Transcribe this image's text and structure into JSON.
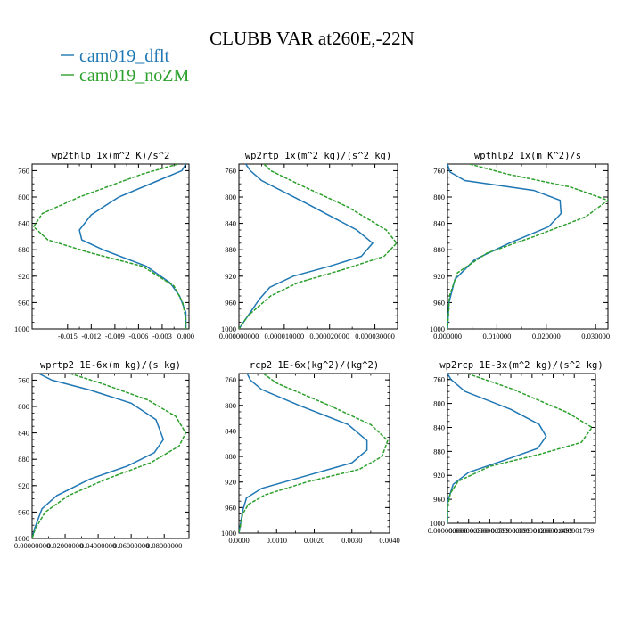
{
  "figure": {
    "title": "CLUBB VAR at260E,-22N",
    "legend": [
      {
        "name": "cam019_dflt",
        "color": "#1f77b4"
      },
      {
        "name": "cam019_noZM",
        "color": "#2ca02c"
      }
    ]
  },
  "chart_data": [
    {
      "type": "line",
      "title": "wp2thlp   1x(m^2 K)/s^2",
      "ylim": [
        1000,
        750
      ],
      "yticks": [
        "760",
        "800",
        "840",
        "880",
        "920",
        "960",
        "1000"
      ],
      "ytick_values": [
        760,
        800,
        840,
        880,
        920,
        960,
        1000
      ],
      "xlim": [
        -0.0195,
        0.0004
      ],
      "xticks": [
        "-0.015",
        "-0.012",
        "-0.009",
        "-0.006",
        "-0.003",
        "0.000"
      ],
      "xtick_values": [
        -0.015,
        -0.012,
        -0.009,
        -0.006,
        -0.003,
        0.0
      ],
      "series": [
        {
          "name": "cam019_dflt",
          "color": "#1f77b4",
          "dash": "",
          "points": [
            [
              0.0,
              750
            ],
            [
              -0.0005,
              760
            ],
            [
              -0.0035,
              775
            ],
            [
              -0.0085,
              800
            ],
            [
              -0.012,
              827
            ],
            [
              -0.0135,
              850
            ],
            [
              -0.0132,
              865
            ],
            [
              -0.0105,
              880
            ],
            [
              -0.005,
              905
            ],
            [
              -0.002,
              930
            ],
            [
              -0.0008,
              950
            ],
            [
              0.0,
              975
            ],
            [
              0.0,
              1000
            ]
          ]
        },
        {
          "name": "cam019_noZM",
          "color": "#2ca02c",
          "dash": "4,1.5",
          "points": [
            [
              -0.001,
              750
            ],
            [
              -0.0055,
              765
            ],
            [
              -0.0135,
              800
            ],
            [
              -0.0182,
              825
            ],
            [
              -0.0193,
              845
            ],
            [
              -0.0175,
              865
            ],
            [
              -0.012,
              885
            ],
            [
              -0.0055,
              905
            ],
            [
              -0.0015,
              935
            ],
            [
              -0.0004,
              960
            ],
            [
              0.0,
              985
            ],
            [
              0.0,
              1000
            ]
          ]
        }
      ]
    },
    {
      "type": "line",
      "title": "wp2rtp   1x(m^2 kg)/(s^2 kg)",
      "ylim": [
        1000,
        750
      ],
      "yticks": [
        "760",
        "800",
        "840",
        "880",
        "920",
        "960",
        "1000"
      ],
      "ytick_values": [
        760,
        800,
        840,
        880,
        920,
        960,
        1000
      ],
      "xlim": [
        0.0,
        3.5e-05
      ],
      "xticks": [
        "0.000000000",
        "0.000010000",
        "0.000020000",
        "0.000030000"
      ],
      "xtick_values": [
        0.0,
        1e-05,
        2e-05,
        3e-05
      ],
      "series": [
        {
          "name": "cam019_dflt",
          "color": "#1f77b4",
          "dash": "",
          "points": [
            [
              1.5e-06,
              750
            ],
            [
              2.5e-06,
              760
            ],
            [
              5e-06,
              775
            ],
            [
              1.5e-05,
              810
            ],
            [
              2.6e-05,
              850
            ],
            [
              2.95e-05,
              870
            ],
            [
              2.7e-05,
              890
            ],
            [
              2e-05,
              905
            ],
            [
              1.2e-05,
              920
            ],
            [
              6.8e-06,
              937
            ],
            [
              4.5e-06,
              955
            ],
            [
              1.5e-06,
              985
            ],
            [
              0.0,
              1000
            ]
          ]
        },
        {
          "name": "cam019_noZM",
          "color": "#2ca02c",
          "dash": "4,1.5",
          "points": [
            [
              5.5e-06,
              750
            ],
            [
              7e-06,
              760
            ],
            [
              1.3e-05,
              780
            ],
            [
              2.4e-05,
              815
            ],
            [
              3.25e-05,
              850
            ],
            [
              3.48e-05,
              870
            ],
            [
              3.2e-05,
              890
            ],
            [
              2.3e-05,
              910
            ],
            [
              1.3e-05,
              930
            ],
            [
              7e-06,
              950
            ],
            [
              2e-06,
              980
            ],
            [
              0.0,
              1000
            ]
          ]
        }
      ]
    },
    {
      "type": "line",
      "title": "wpthlp2   1x(m K^2)/s",
      "ylim": [
        1000,
        750
      ],
      "yticks": [
        "760",
        "800",
        "840",
        "880",
        "920",
        "960",
        "1000"
      ],
      "ytick_values": [
        760,
        800,
        840,
        880,
        920,
        960,
        1000
      ],
      "xlim": [
        0.0,
        0.0325
      ],
      "xticks": [
        "0.000000",
        "0.010000",
        "0.020000",
        "0.030000"
      ],
      "xtick_values": [
        0.0,
        0.01,
        0.02,
        0.03
      ],
      "series": [
        {
          "name": "cam019_dflt",
          "color": "#1f77b4",
          "dash": "",
          "points": [
            [
              0.0,
              750
            ],
            [
              0.0005,
              762
            ],
            [
              0.0035,
              775
            ],
            [
              0.0175,
              790
            ],
            [
              0.0228,
              805
            ],
            [
              0.023,
              825
            ],
            [
              0.0205,
              845
            ],
            [
              0.0125,
              870
            ],
            [
              0.0055,
              895
            ],
            [
              0.0015,
              925
            ],
            [
              0.0003,
              960
            ],
            [
              0.0,
              1000
            ]
          ]
        },
        {
          "name": "cam019_noZM",
          "color": "#2ca02c",
          "dash": "4,1.5",
          "points": [
            [
              0.0045,
              750
            ],
            [
              0.012,
              765
            ],
            [
              0.025,
              785
            ],
            [
              0.0325,
              805
            ],
            [
              0.028,
              830
            ],
            [
              0.0175,
              860
            ],
            [
              0.008,
              885
            ],
            [
              0.002,
              915
            ],
            [
              0.0004,
              950
            ],
            [
              0.0,
              1000
            ]
          ]
        }
      ]
    },
    {
      "type": "line",
      "title": "wprtp2   1E-6x(m kg)/(s kg)",
      "ylim": [
        1000,
        750
      ],
      "yticks": [
        "760",
        "800",
        "840",
        "880",
        "920",
        "960",
        "1000"
      ],
      "ytick_values": [
        760,
        800,
        840,
        880,
        920,
        960,
        1000
      ],
      "xlim": [
        0.0,
        0.095
      ],
      "xticks": [
        "0.00000000",
        "0.02000000",
        "0.04000000",
        "0.06000000",
        "0.08000000"
      ],
      "xtick_values": [
        0.0,
        0.02,
        0.04,
        0.06,
        0.08
      ],
      "series": [
        {
          "name": "cam019_dflt",
          "color": "#1f77b4",
          "dash": "",
          "points": [
            [
              0.004,
              750
            ],
            [
              0.012,
              760
            ],
            [
              0.035,
              775
            ],
            [
              0.06,
              795
            ],
            [
              0.075,
              820
            ],
            [
              0.0795,
              850
            ],
            [
              0.074,
              870
            ],
            [
              0.058,
              890
            ],
            [
              0.035,
              910
            ],
            [
              0.015,
              935
            ],
            [
              0.006,
              955
            ],
            [
              0.0015,
              985
            ],
            [
              0.0,
              1000
            ]
          ]
        },
        {
          "name": "cam019_noZM",
          "color": "#2ca02c",
          "dash": "4,1.5",
          "points": [
            [
              0.023,
              750
            ],
            [
              0.042,
              765
            ],
            [
              0.07,
              790
            ],
            [
              0.087,
              815
            ],
            [
              0.093,
              840
            ],
            [
              0.089,
              860
            ],
            [
              0.072,
              885
            ],
            [
              0.045,
              910
            ],
            [
              0.022,
              935
            ],
            [
              0.008,
              960
            ],
            [
              0.002,
              985
            ],
            [
              0.0,
              1000
            ]
          ]
        }
      ]
    },
    {
      "type": "line",
      "title": "rcp2   1E-6x(kg^2)/(kg^2)",
      "ylim": [
        1000,
        750
      ],
      "yticks": [
        "760",
        "800",
        "840",
        "880",
        "920",
        "960",
        "1000"
      ],
      "ytick_values": [
        760,
        800,
        840,
        880,
        920,
        960,
        1000
      ],
      "xlim": [
        0.0,
        0.004
      ],
      "xticks": [
        "0.0000",
        "0.0010",
        "0.0020",
        "0.0030",
        "0.0040"
      ],
      "xtick_values": [
        0.0,
        0.001,
        0.002,
        0.003,
        0.004
      ],
      "series": [
        {
          "name": "cam019_dflt",
          "color": "#1f77b4",
          "dash": "",
          "points": [
            [
              0.00022,
              750
            ],
            [
              0.0003,
              760
            ],
            [
              0.0006,
              775
            ],
            [
              0.0016,
              800
            ],
            [
              0.0029,
              830
            ],
            [
              0.0034,
              855
            ],
            [
              0.0034,
              870
            ],
            [
              0.003,
              890
            ],
            [
              0.0018,
              910
            ],
            [
              0.0006,
              930
            ],
            [
              0.0002,
              945
            ],
            [
              0.0001,
              965
            ],
            [
              0.0,
              1000
            ]
          ]
        },
        {
          "name": "cam019_noZM",
          "color": "#2ca02c",
          "dash": "4,1.5",
          "points": [
            [
              0.00065,
              750
            ],
            [
              0.001,
              765
            ],
            [
              0.0024,
              800
            ],
            [
              0.0035,
              830
            ],
            [
              0.00395,
              855
            ],
            [
              0.0038,
              880
            ],
            [
              0.0032,
              900
            ],
            [
              0.0018,
              920
            ],
            [
              0.0007,
              940
            ],
            [
              0.00025,
              955
            ],
            [
              0.0001,
              970
            ],
            [
              0.0,
              1000
            ]
          ]
        }
      ]
    },
    {
      "type": "line",
      "title": "wp2rcp   1E-3x(m^2 kg)/(s^2 kg)",
      "ylim": [
        1000,
        750
      ],
      "yticks": [
        "760",
        "800",
        "840",
        "880",
        "920",
        "960",
        "1000"
      ],
      "ytick_values": [
        760,
        800,
        840,
        880,
        920,
        960,
        1000
      ],
      "xlim": [
        0.0,
        2.1e-06
      ],
      "xticks": [
        "0.000000000",
        "0.000000300",
        "0.000000599",
        "0.000000899",
        "0.000001200",
        "0.000001499",
        "0.000001799"
      ],
      "xtick_values": [
        0.0,
        3e-07,
        5.99e-07,
        8.99e-07,
        1.2e-06,
        1.499e-06,
        1.799e-06
      ],
      "series": [
        {
          "name": "cam019_dflt",
          "color": "#1f77b4",
          "dash": "",
          "points": [
            [
              0.0,
              750
            ],
            [
              5e-08,
              760
            ],
            [
              2.5e-07,
              780
            ],
            [
              9e-07,
              810
            ],
            [
              1.3e-06,
              835
            ],
            [
              1.4e-06,
              855
            ],
            [
              1.28e-06,
              875
            ],
            [
              8e-07,
              895
            ],
            [
              3e-07,
              915
            ],
            [
              8e-08,
              935
            ],
            [
              0.0,
              965
            ],
            [
              0.0,
              1000
            ]
          ]
        },
        {
          "name": "cam019_noZM",
          "color": "#2ca02c",
          "dash": "4,1.5",
          "points": [
            [
              2.8e-07,
              750
            ],
            [
              9e-07,
              775
            ],
            [
              1.7e-06,
              815
            ],
            [
              2.05e-06,
              840
            ],
            [
              1.9e-06,
              865
            ],
            [
              1.3e-06,
              885
            ],
            [
              6e-07,
              905
            ],
            [
              1.5e-07,
              930
            ],
            [
              4e-08,
              950
            ],
            [
              0.0,
              975
            ],
            [
              0.0,
              1000
            ]
          ]
        }
      ]
    }
  ]
}
